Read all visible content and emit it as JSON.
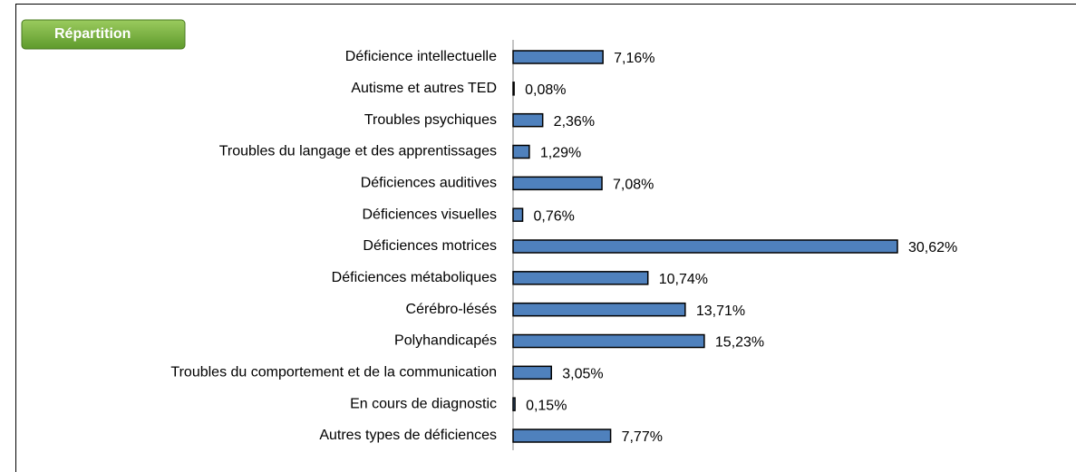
{
  "chart_data": {
    "type": "bar",
    "orientation": "horizontal",
    "title": "Répartition",
    "categories": [
      "Déficience intellectuelle",
      "Autisme et autres TED",
      "Troubles psychiques",
      "Troubles du langage et des apprentissages",
      "Déficiences auditives",
      "Déficiences visuelles",
      "Déficiences motrices",
      "Déficiences métaboliques",
      "Cérébro-lésés",
      "Polyhandicapés",
      "Troubles du comportement et de la communication",
      "En cours de diagnostic",
      "Autres types de déficiences"
    ],
    "values": [
      7.16,
      0.08,
      2.36,
      1.29,
      7.08,
      0.76,
      30.62,
      10.74,
      13.71,
      15.23,
      3.05,
      0.15,
      7.77
    ],
    "value_labels": [
      "7,16%",
      "0,08%",
      "2,36%",
      "1,29%",
      "7,08%",
      "0,76%",
      "30,62%",
      "10,74%",
      "13,71%",
      "15,23%",
      "3,05%",
      "0,15%",
      "7,77%"
    ],
    "color": "#4f81bd"
  }
}
